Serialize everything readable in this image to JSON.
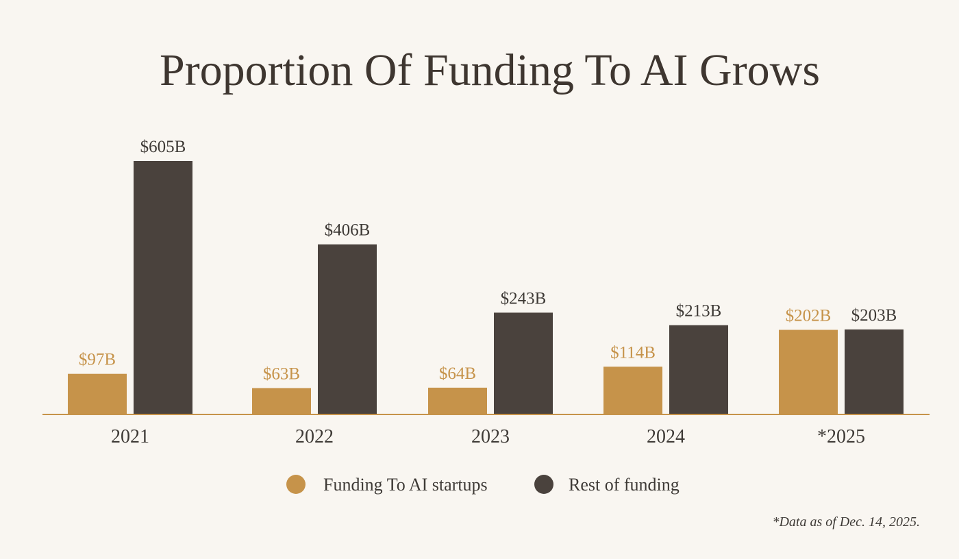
{
  "chart_data": {
    "type": "bar",
    "title": "Proportion Of Funding To AI Grows",
    "categories": [
      "2021",
      "2022",
      "2023",
      "2024",
      "*2025"
    ],
    "series": [
      {
        "name": "Funding To AI startups",
        "values": [
          97,
          63,
          64,
          114,
          202
        ],
        "labels": [
          "$97B",
          "$63B",
          "$64B",
          "$114B",
          "$202B"
        ],
        "color": "#c6934a"
      },
      {
        "name": "Rest of funding",
        "values": [
          605,
          406,
          243,
          213,
          203
        ],
        "labels": [
          "$605B",
          "$406B",
          "$243B",
          "$213B",
          "$203B"
        ],
        "color": "#4a423d"
      }
    ],
    "legend_position": "bottom",
    "grid": false,
    "footnote": "*Data as of Dec. 14, 2025.",
    "colors": {
      "background": "#f9f6f1",
      "baseline": "#c6934a",
      "title": "#3e3630",
      "text": "#3e3a36"
    }
  }
}
